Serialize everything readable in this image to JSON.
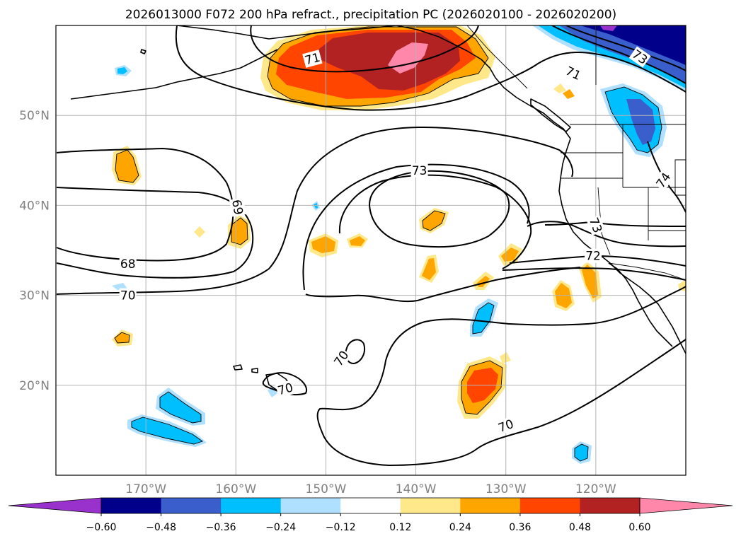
{
  "chart_data": {
    "type": "contour-map",
    "title": "2026013000 F072 200 hPa refract., precipitation PC (2026020100 - 2026020200)",
    "lon_range": [
      -180,
      -110
    ],
    "lat_range": [
      10,
      60
    ],
    "lon_ticks": [
      {
        "value": -170,
        "label": "170°W"
      },
      {
        "value": -160,
        "label": "160°W"
      },
      {
        "value": -150,
        "label": "150°W"
      },
      {
        "value": -140,
        "label": "140°W"
      },
      {
        "value": -130,
        "label": "130°W"
      },
      {
        "value": -120,
        "label": "120°W"
      }
    ],
    "lat_ticks": [
      {
        "value": 20,
        "label": "20°N"
      },
      {
        "value": 30,
        "label": "30°N"
      },
      {
        "value": 40,
        "label": "40°N"
      },
      {
        "value": 50,
        "label": "50°N"
      }
    ],
    "grid": true,
    "colorbar": {
      "orientation": "horizontal",
      "extend": "both",
      "bounds": [
        -0.6,
        -0.48,
        -0.36,
        -0.24,
        -0.12,
        0.12,
        0.24,
        0.36,
        0.48,
        0.6
      ],
      "tick_labels": [
        "−0.60",
        "−0.48",
        "−0.36",
        "−0.24",
        "−0.12",
        "0.12",
        "0.24",
        "0.36",
        "0.48",
        "0.60"
      ],
      "colors": [
        "#9932cc",
        "#00008b",
        "#3a5fcd",
        "#00bfff",
        "#b0e0ff",
        "#ffffff",
        "#ffe88a",
        "#ffa500",
        "#ff4500",
        "#b22222",
        "#ff88aa"
      ]
    },
    "contour_labels": [
      {
        "text": "71",
        "lon": -151.5,
        "lat": 56.3,
        "rot": -15
      },
      {
        "text": "71",
        "lon": -122.5,
        "lat": 54.7,
        "rot": 25
      },
      {
        "text": "73",
        "lon": -115.1,
        "lat": 56.5,
        "rot": 35
      },
      {
        "text": "73",
        "lon": -139.6,
        "lat": 43.9,
        "rot": 0
      },
      {
        "text": "74",
        "lon": -112.5,
        "lat": 42.8,
        "rot": -55
      },
      {
        "text": "69",
        "lon": -159.8,
        "lat": 39.8,
        "rot": 80
      },
      {
        "text": "73",
        "lon": -120.0,
        "lat": 37.8,
        "rot": 70
      },
      {
        "text": "72",
        "lon": -120.3,
        "lat": 34.4,
        "rot": 0
      },
      {
        "text": "68",
        "lon": -172.0,
        "lat": 33.5,
        "rot": 0
      },
      {
        "text": "70",
        "lon": -172.0,
        "lat": 30.0,
        "rot": 0
      },
      {
        "text": "70",
        "lon": -148.3,
        "lat": 23.0,
        "rot": -55
      },
      {
        "text": "70",
        "lon": -154.5,
        "lat": 19.6,
        "rot": -15
      },
      {
        "text": "70",
        "lon": -130.0,
        "lat": 15.5,
        "rot": -20
      }
    ]
  }
}
